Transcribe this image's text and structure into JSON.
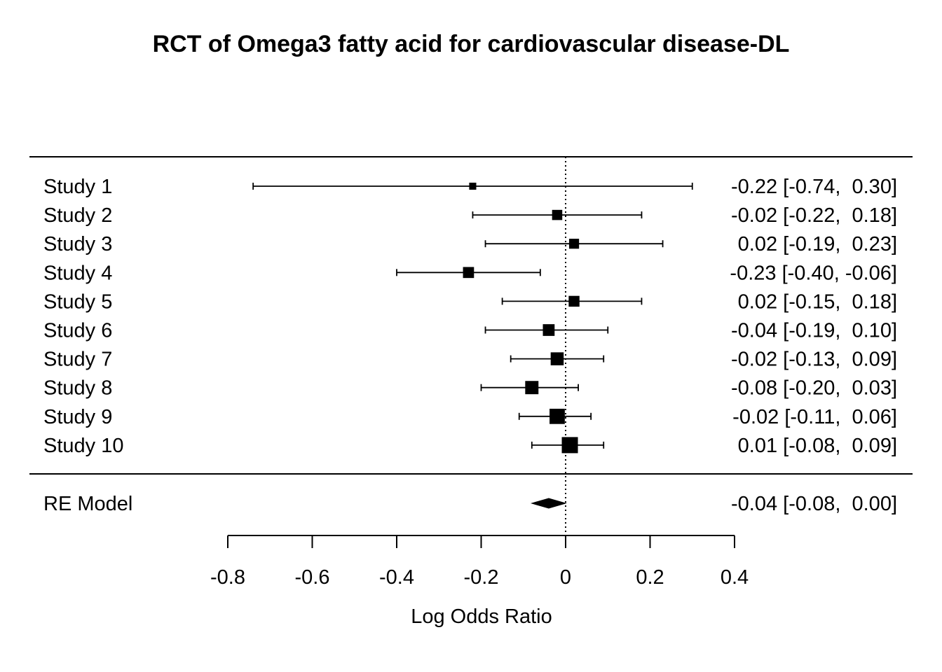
{
  "chart_data": {
    "type": "forest",
    "title": "RCT of Omega3 fatty acid for cardiovascular disease-DL",
    "xlabel": "Log Odds Ratio",
    "xlim": [
      -0.8,
      0.4
    ],
    "xticks": [
      -0.8,
      -0.6,
      -0.4,
      -0.2,
      0,
      0.2,
      0.4
    ],
    "xtick_labels": [
      "-0.8",
      "-0.6",
      "-0.4",
      "-0.2",
      "0",
      "0.2",
      "0.4"
    ],
    "reference_line": 0,
    "studies": [
      {
        "label": "Study 1",
        "estimate": -0.22,
        "lower": -0.74,
        "upper": 0.3,
        "text": "-0.22 [-0.74,  0.30]",
        "weight": 1.0
      },
      {
        "label": "Study 2",
        "estimate": -0.02,
        "lower": -0.22,
        "upper": 0.18,
        "text": "-0.02 [-0.22,  0.18]",
        "weight": 6.0
      },
      {
        "label": "Study 3",
        "estimate": 0.02,
        "lower": -0.19,
        "upper": 0.23,
        "text": "0.02 [-0.19,  0.23]",
        "weight": 5.5
      },
      {
        "label": "Study 4",
        "estimate": -0.23,
        "lower": -0.4,
        "upper": -0.06,
        "text": "-0.23 [-0.40, -0.06]",
        "weight": 8.0
      },
      {
        "label": "Study 5",
        "estimate": 0.02,
        "lower": -0.15,
        "upper": 0.18,
        "text": "0.02 [-0.15,  0.18]",
        "weight": 7.5
      },
      {
        "label": "Study 6",
        "estimate": -0.04,
        "lower": -0.19,
        "upper": 0.1,
        "text": "-0.04 [-0.19,  0.10]",
        "weight": 10.0
      },
      {
        "label": "Study 7",
        "estimate": -0.02,
        "lower": -0.13,
        "upper": 0.09,
        "text": "-0.02 [-0.13,  0.09]",
        "weight": 14.0
      },
      {
        "label": "Study 8",
        "estimate": -0.08,
        "lower": -0.2,
        "upper": 0.03,
        "text": "-0.08 [-0.20,  0.03]",
        "weight": 15.0
      },
      {
        "label": "Study 9",
        "estimate": -0.02,
        "lower": -0.11,
        "upper": 0.06,
        "text": "-0.02 [-0.11,  0.06]",
        "weight": 23.0
      },
      {
        "label": "Study 10",
        "estimate": 0.01,
        "lower": -0.08,
        "upper": 0.09,
        "text": "0.01 [-0.08,  0.09]",
        "weight": 27.0
      }
    ],
    "summary": {
      "label": "RE Model",
      "estimate": -0.04,
      "lower": -0.08,
      "upper": 0.0,
      "text": "-0.04 [-0.08,  0.00]"
    }
  }
}
